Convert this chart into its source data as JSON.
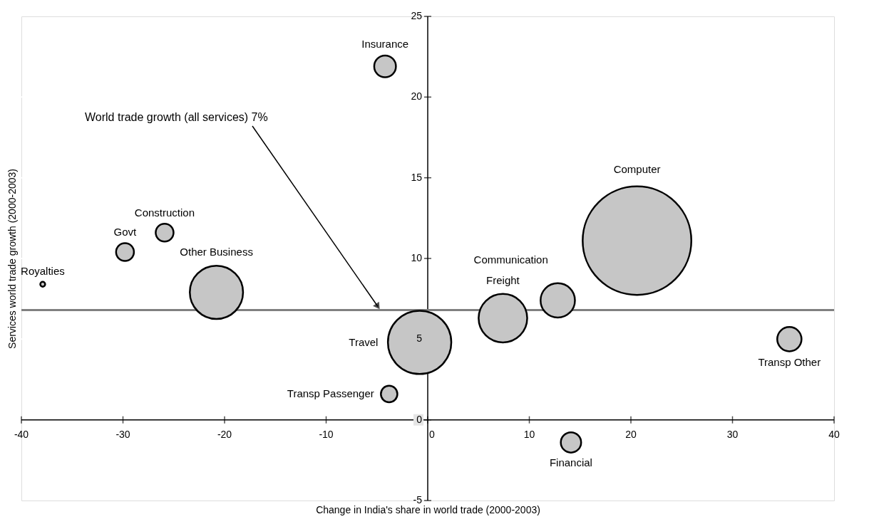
{
  "chart_data": {
    "type": "bubble",
    "xlabel": "Change in India's share in world trade (2000-2003)",
    "ylabel": "Services world trade growth (2000-2003)",
    "xlim": [
      -40,
      40
    ],
    "ylim": [
      -5,
      25
    ],
    "xticks": [
      -40,
      -30,
      -20,
      -10,
      0,
      10,
      20,
      30,
      40
    ],
    "yticks": [
      -5,
      0,
      5,
      10,
      15,
      20,
      25
    ],
    "grid": "y",
    "legend": false,
    "marker": "circle",
    "series": [
      {
        "name": "Insurance",
        "color": "#c6c6c6",
        "x": [
          -4.2
        ],
        "values": [
          21.9
        ],
        "sizes": [
          0.04
        ]
      },
      {
        "name": "Royalties",
        "color": "#c6c6c6",
        "x": [
          -37.9
        ],
        "values": [
          8.4
        ],
        "sizes": [
          0.002
        ]
      },
      {
        "name": "Govt",
        "color": "#c6c6c6",
        "x": [
          -29.8
        ],
        "values": [
          10.4
        ],
        "sizes": [
          0.027
        ]
      },
      {
        "name": "Construction",
        "color": "#c6c6c6",
        "x": [
          -25.9
        ],
        "values": [
          11.6
        ],
        "sizes": [
          0.027
        ]
      },
      {
        "name": "Other Business",
        "color": "#c6c6c6",
        "x": [
          -20.8
        ],
        "values": [
          7.9
        ],
        "sizes": [
          0.24
        ]
      },
      {
        "name": "Travel",
        "color": "#c6c6c6",
        "x": [
          -0.8
        ],
        "values": [
          4.8
        ],
        "sizes": [
          0.34
        ]
      },
      {
        "name": "Transp Passenger",
        "color": "#c6c6c6",
        "x": [
          -3.8
        ],
        "values": [
          1.6
        ],
        "sizes": [
          0.023
        ]
      },
      {
        "name": "Freight",
        "color": "#c6c6c6",
        "x": [
          7.4
        ],
        "values": [
          6.3
        ],
        "sizes": [
          0.2
        ]
      },
      {
        "name": "Communication",
        "color": "#c6c6c6",
        "x": [
          12.8
        ],
        "values": [
          7.4
        ],
        "sizes": [
          0.1
        ]
      },
      {
        "name": "Computer",
        "color": "#c6c6c6",
        "x": [
          20.6
        ],
        "values": [
          11.1
        ],
        "sizes": [
          1
        ]
      },
      {
        "name": "Transp Other",
        "color": "#c6c6c6",
        "x": [
          35.6
        ],
        "values": [
          5.0
        ],
        "sizes": [
          0.05
        ]
      },
      {
        "name": "Financial",
        "color": "#c6c6c6",
        "x": [
          14.1
        ],
        "values": [
          -1.4
        ],
        "sizes": [
          0.035
        ]
      }
    ],
    "ref_lines": [
      {
        "axis": "y",
        "value": 6.8,
        "label": "World trade growth (all services) 7%",
        "color": "#808080"
      }
    ]
  }
}
